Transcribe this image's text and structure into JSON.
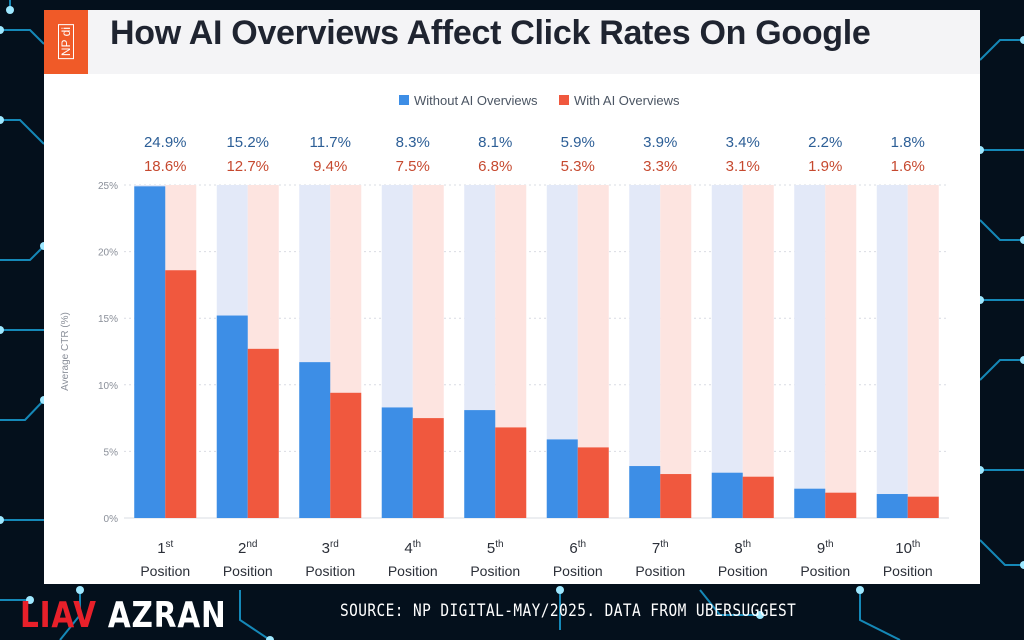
{
  "title": "How AI Overviews Affect Click Rates On Google",
  "logo_text": "NP di",
  "footer": {
    "author_first": "LIAV",
    "author_last": "AZRAN",
    "source": "SOURCE: NP DIGITAL-MAY/2025. DATA FROM UBERSUGGEST"
  },
  "colors": {
    "without": "#3d8ee6",
    "without_track": "#e3e9f8",
    "with": "#f0583e",
    "with_track": "#fde4e0",
    "without_label": "#2c5e96",
    "with_label": "#c6492f",
    "background": "#04101c",
    "circuit": "#1aa6df"
  },
  "chart_data": {
    "type": "bar",
    "title": "How AI Overviews Affect Click Rates On Google",
    "ylabel": "Average CTR (%)",
    "xlabel": "",
    "ylim": [
      0,
      25
    ],
    "yticks": [
      "0%",
      "5%",
      "10%",
      "15%",
      "20%",
      "25%"
    ],
    "legend_position": "top-center",
    "grid": true,
    "categories": [
      {
        "num": "1",
        "sup": "st",
        "label": "Position"
      },
      {
        "num": "2",
        "sup": "nd",
        "label": "Position"
      },
      {
        "num": "3",
        "sup": "rd",
        "label": "Position"
      },
      {
        "num": "4",
        "sup": "th",
        "label": "Position"
      },
      {
        "num": "5",
        "sup": "th",
        "label": "Position"
      },
      {
        "num": "6",
        "sup": "th",
        "label": "Position"
      },
      {
        "num": "7",
        "sup": "th",
        "label": "Position"
      },
      {
        "num": "8",
        "sup": "th",
        "label": "Position"
      },
      {
        "num": "9",
        "sup": "th",
        "label": "Position"
      },
      {
        "num": "10",
        "sup": "th",
        "label": "Position"
      }
    ],
    "series": [
      {
        "name": "Without AI Overviews",
        "values": [
          24.9,
          15.2,
          11.7,
          8.3,
          8.1,
          5.9,
          3.9,
          3.4,
          2.2,
          1.8
        ],
        "labels": [
          "24.9%",
          "15.2%",
          "11.7%",
          "8.3%",
          "8.1%",
          "5.9%",
          "3.9%",
          "3.4%",
          "2.2%",
          "1.8%"
        ]
      },
      {
        "name": "With AI Overviews",
        "values": [
          18.6,
          12.7,
          9.4,
          7.5,
          6.8,
          5.3,
          3.3,
          3.1,
          1.9,
          1.6
        ],
        "labels": [
          "18.6%",
          "12.7%",
          "9.4%",
          "7.5%",
          "6.8%",
          "5.3%",
          "3.3%",
          "3.1%",
          "1.9%",
          "1.6%"
        ]
      }
    ]
  }
}
